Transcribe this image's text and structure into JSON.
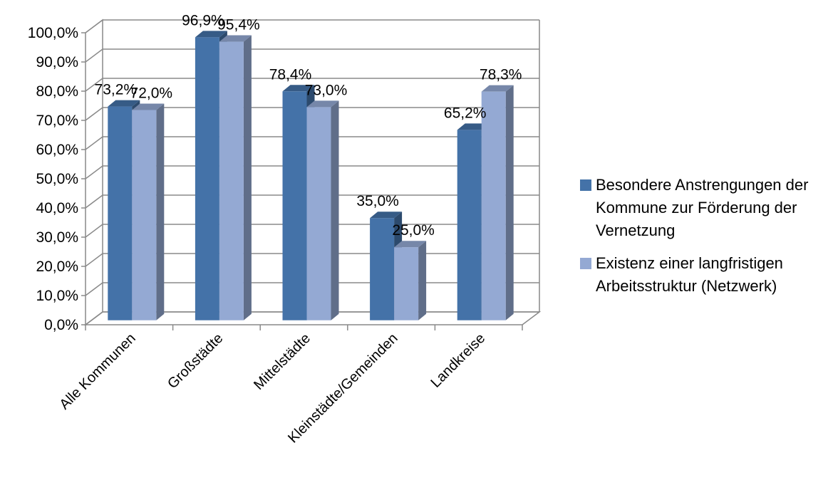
{
  "chart_data": {
    "type": "bar",
    "title": "",
    "xlabel": "",
    "ylabel": "",
    "ylim": [
      0,
      100
    ],
    "y_ticks": [
      "0,0%",
      "10,0%",
      "20,0%",
      "30,0%",
      "40,0%",
      "50,0%",
      "60,0%",
      "70,0%",
      "80,0%",
      "90,0%",
      "100,0%"
    ],
    "categories": [
      "Alle Kommunen",
      "Großstädte",
      "Mittelstädte",
      "Kleinstädte/Gemeinden",
      "Landkreise"
    ],
    "series": [
      {
        "name": "Besondere Anstrengungen der Kommune zur Förderung der Vernetzung",
        "color": "#4472A8",
        "values": [
          73.2,
          96.9,
          78.4,
          35.0,
          65.2
        ],
        "labels": [
          "73,2%",
          "96,9%",
          "78,4%",
          "35,0%",
          "65,2%"
        ]
      },
      {
        "name": "Existenz einer langfristigen Arbeitsstruktur (Netzwerk)",
        "color": "#94A9D3",
        "values": [
          72.0,
          95.4,
          73.0,
          25.0,
          78.3
        ],
        "labels": [
          "72,0%",
          "95,4%",
          "73,0%",
          "25,0%",
          "78,3%"
        ]
      }
    ],
    "grid": true,
    "legend_position": "right",
    "style": "3d-column"
  }
}
